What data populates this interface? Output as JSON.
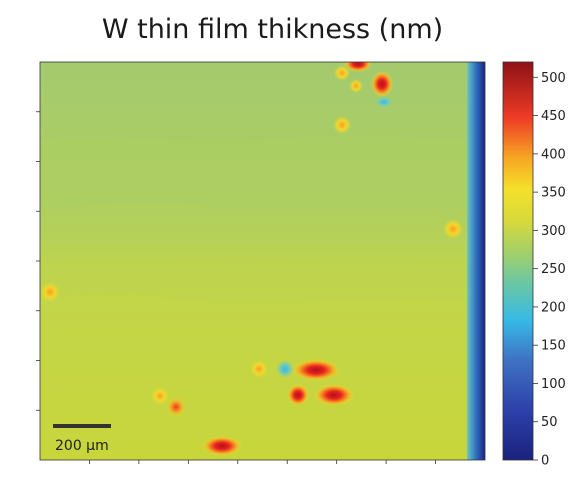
{
  "chart_data": {
    "type": "heatmap",
    "title": "W thin film thikness (nm)",
    "colorbar": {
      "min": 0,
      "max": 520,
      "ticks": [
        0,
        50,
        100,
        150,
        200,
        250,
        300,
        350,
        400,
        450,
        500
      ],
      "tick_labels": [
        "0",
        "50",
        "100",
        "150",
        "200",
        "250",
        "300",
        "350",
        "400",
        "450",
        "500"
      ],
      "colormap": "jet"
    },
    "scale_bar": {
      "label": "200 µm"
    },
    "background": "mostly ~250 nm in the upper half and ~300 nm in the lower half, with a thin ~20-150 nm strip along the right edge",
    "hotspots_nm": [
      {
        "region": "top-center",
        "value": 500
      },
      {
        "region": "top-center",
        "value": 480
      },
      {
        "region": "top-center",
        "value": 330
      },
      {
        "region": "top-center",
        "value": 200
      },
      {
        "region": "upper-center",
        "value": 330
      },
      {
        "region": "right",
        "value": 340
      },
      {
        "region": "left",
        "value": 340
      },
      {
        "region": "bottom-center",
        "value": 480
      },
      {
        "region": "bottom-center",
        "value": 470
      },
      {
        "region": "bottom-center",
        "value": 460
      },
      {
        "region": "bottom-center",
        "value": 340
      },
      {
        "region": "bottom-center",
        "value": 180
      },
      {
        "region": "bottom-left",
        "value": 420
      },
      {
        "region": "bottom-left",
        "value": 340
      },
      {
        "region": "bottom-left",
        "value": 480
      }
    ]
  }
}
